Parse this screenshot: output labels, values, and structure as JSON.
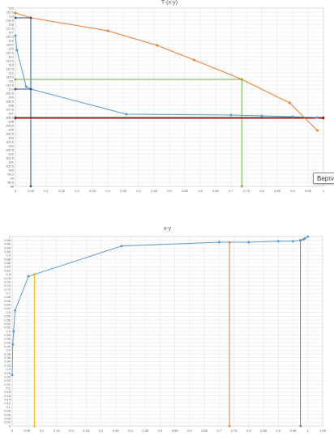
{
  "chart_data": [
    {
      "type": "line",
      "title": "T-(x-y)",
      "x": {
        "ticks": [
          "0",
          "0.05",
          "0.1",
          "0.15",
          "0.2",
          "0.25",
          "0.3",
          "0.35",
          "0.4",
          "0.45",
          "0.5",
          "0.55",
          "0.6",
          "0.65",
          "0.7",
          "0.75",
          "0.8",
          "0.85",
          "0.9",
          "0.95",
          "1"
        ],
        "range": [
          0,
          1
        ]
      },
      "y": {
        "ticks": [
          "98",
          "98.5",
          "99",
          "99.5",
          "100",
          "100.5",
          "101",
          "101.5",
          "102",
          "102.5",
          "103",
          "103.5",
          "104",
          "104.5",
          "105",
          "105.5",
          "106",
          "106.5",
          "107",
          "107.5",
          "108",
          "108.5",
          "109",
          "109.5",
          "110",
          "110.5",
          "111",
          "111.5",
          "112",
          "112.5",
          "113",
          "113.5",
          "114",
          "114.5",
          "115",
          "115.5",
          "116",
          "116.5",
          "117",
          "117.5",
          "118",
          "118.5",
          "119",
          "119.5",
          "120"
        ],
        "range": [
          98,
          120
        ]
      },
      "series": [
        {
          "color": "#ed7d31",
          "points": [
            [
              0,
              119.4
            ],
            [
              0.05,
              118.8
            ],
            [
              0.3,
              117.2
            ],
            [
              0.46,
              115.4
            ],
            [
              0.58,
              113.6
            ],
            [
              0.735,
              111.2
            ],
            [
              0.89,
              108.3
            ],
            [
              0.98,
              104.9
            ]
          ]
        },
        {
          "color": "#5b9bd5",
          "points": [
            [
              0,
              116.6
            ],
            [
              0.005,
              114.8
            ],
            [
              0.035,
              110.3
            ],
            [
              0.05,
              110.0
            ],
            [
              0.36,
              106.9
            ],
            [
              0.7,
              106.8
            ],
            [
              0.8,
              106.7
            ],
            [
              0.9,
              106.6
            ],
            [
              0.98,
              106.5
            ]
          ]
        }
      ],
      "reference_lines": [
        {
          "color": "#2e4f8a",
          "points": [
            [
              0,
              118.8
            ],
            [
              0.05,
              118.8
            ],
            [
              0.05,
              98
            ]
          ]
        },
        {
          "color": "#2e4f8a",
          "points": [
            [
              0,
              110
            ],
            [
              0.05,
              110
            ]
          ]
        },
        {
          "color": "#70ad47",
          "points": [
            [
              0,
              111.2
            ],
            [
              0.735,
              111.2
            ],
            [
              0.735,
              98
            ]
          ]
        },
        {
          "color": "#375623",
          "points": [
            [
              0,
              106.5
            ],
            [
              1,
              106.5
            ]
          ]
        },
        {
          "color": "#c00000",
          "points": [
            [
              0,
              106.4
            ],
            [
              1,
              106.4
            ]
          ]
        }
      ],
      "tooltip": "Верти"
    },
    {
      "type": "line",
      "title": "x-y",
      "x": {
        "ticks": [
          "0",
          "0.05",
          "0.1",
          "0.15",
          "0.2",
          "0.25",
          "0.3",
          "0.35",
          "0.4",
          "0.45",
          "0.5",
          "0.55",
          "0.6",
          "0.65",
          "0.7",
          "0.75",
          "0.8",
          "0.85",
          "0.9",
          "0.95",
          "1",
          "1.05"
        ],
        "range": [
          0,
          1.05
        ]
      },
      "y": {
        "ticks": [
          "0",
          "0.02",
          "0.04",
          "0.06",
          "0.08",
          "0.1",
          "0.12",
          "0.14",
          "0.16",
          "0.18",
          "0.2",
          "0.22",
          "0.24",
          "0.26",
          "0.28",
          "0.3",
          "0.32",
          "0.34",
          "0.36",
          "0.38",
          "0.4",
          "0.42",
          "0.44",
          "0.46",
          "0.48",
          "0.5",
          "0.52",
          "0.54",
          "0.56",
          "0.58",
          "0.6",
          "0.62",
          "0.64",
          "0.66",
          "0.68",
          "0.7",
          "0.72",
          "0.74",
          "0.76",
          "0.78",
          "0.8",
          "0.82",
          "0.84",
          "0.86",
          "0.88",
          "0.9",
          "0.92",
          "0.94",
          "0.96",
          "0.98",
          "1"
        ],
        "range": [
          0,
          1
        ]
      },
      "series": [
        {
          "color": "#5b9bd5",
          "points": [
            [
              0,
              0.27
            ],
            [
              0.002,
              0.43
            ],
            [
              0.005,
              0.5
            ],
            [
              0.01,
              0.61
            ],
            [
              0.055,
              0.79
            ],
            [
              0.075,
              0.8
            ],
            [
              0.37,
              0.95
            ],
            [
              0.7,
              0.97
            ],
            [
              0.8,
              0.97
            ],
            [
              0.9,
              0.975
            ],
            [
              0.95,
              0.975
            ],
            [
              0.975,
              0.98
            ],
            [
              0.985,
              0.985
            ],
            [
              0.99,
              0.99
            ],
            [
              1.0,
              1.0
            ]
          ]
        }
      ],
      "reference_lines": [
        {
          "color": "#ffc000",
          "points": [
            [
              0.075,
              0
            ],
            [
              0.075,
              0.8
            ]
          ]
        },
        {
          "color": "#ed7d31",
          "points": [
            [
              0.735,
              0
            ],
            [
              0.735,
              0.97
            ]
          ]
        },
        {
          "color": "#7f7f7f",
          "points": [
            [
              0.975,
              0
            ],
            [
              0.975,
              0.98
            ]
          ]
        }
      ]
    }
  ]
}
